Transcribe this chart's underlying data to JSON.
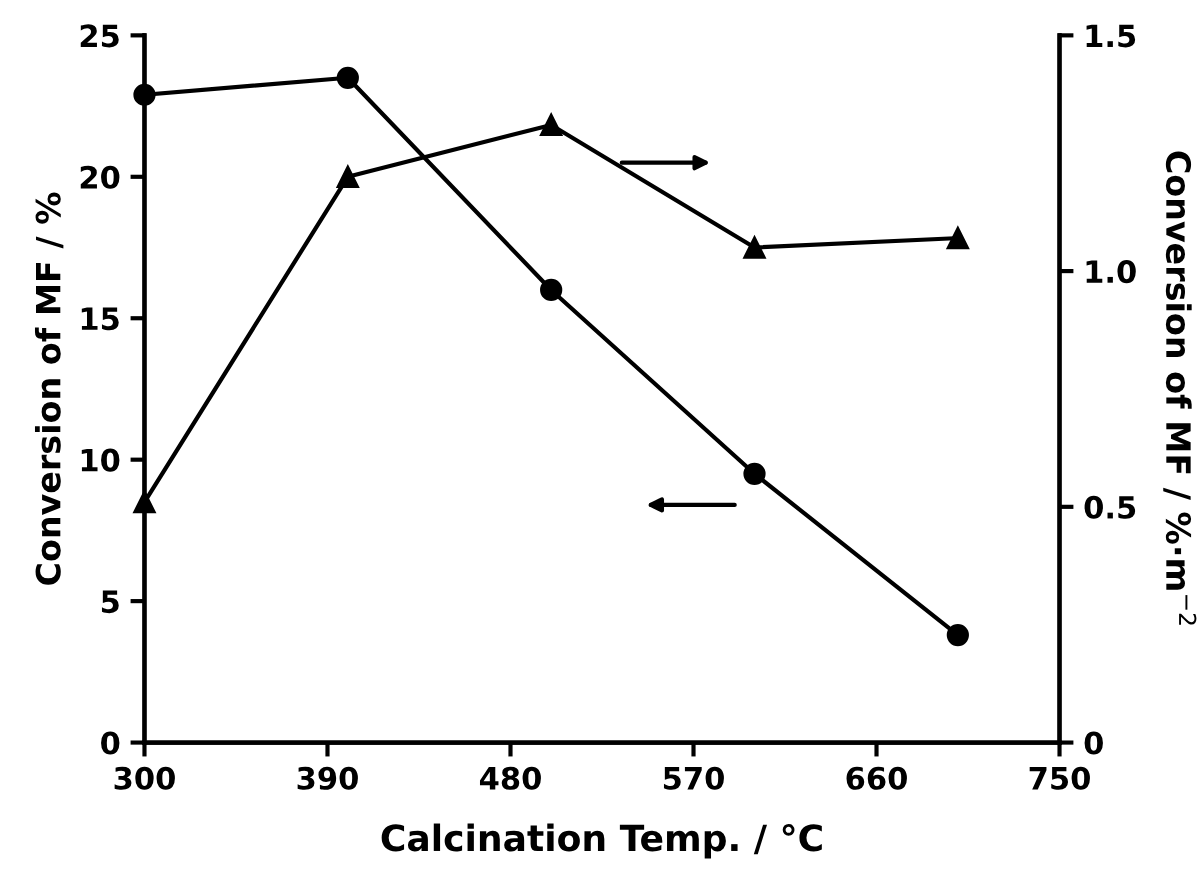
{
  "chart_data": {
    "type": "line",
    "xlabel": "Calcination Temp. / °C",
    "ylabel": "Conversion of MF / %",
    "y2label": "Conversion of MF / %·m$^{−2}$",
    "x": [
      300,
      400,
      500,
      600,
      700
    ],
    "series": [
      {
        "color": "#000000",
        "marker": "circle",
        "values": [
          22.9,
          23.5,
          16.0,
          9.5,
          3.8
        ]
      },
      {
        "color": "#000000",
        "marker": "triangle",
        "axis": "y2",
        "values": [
          0.51,
          1.2,
          1.31,
          1.05,
          1.07
        ]
      }
    ],
    "xlim": [
      300,
      750
    ],
    "xticks": [
      300,
      390,
      480,
      570,
      660,
      750
    ],
    "ylim": [
      0,
      25
    ],
    "yticks": [
      0,
      5,
      10,
      15,
      20,
      25
    ],
    "y2lim": [
      0,
      1.5
    ],
    "y2ticks": [
      0,
      {
        "value": 0.5,
        "label": "0.5"
      },
      {
        "value": 1.0,
        "label": "1.0"
      },
      {
        "value": 1.5,
        "label": "1.5"
      }
    ],
    "grid": false,
    "line_style": "solid"
  }
}
